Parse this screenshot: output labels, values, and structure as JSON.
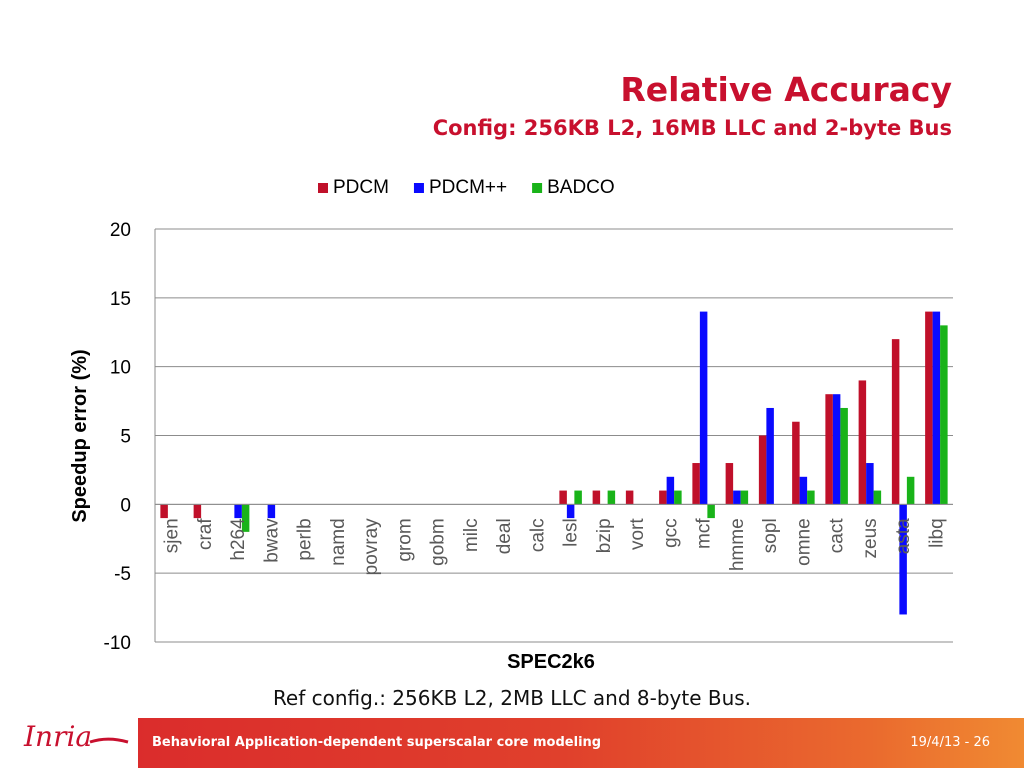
{
  "slide": {
    "title": "Relative Accuracy",
    "subtitle": "Config: 256KB L2, 16MB LLC and 2-byte Bus",
    "caption": "Ref config.: 256KB L2, 2MB LLC and 8-byte Bus.",
    "footer_text": "Behavioral Application-dependent superscalar core modeling",
    "footer_page": "19/4/13 - 26",
    "logo_text": "Inria",
    "colors": {
      "accent": "#c8102e",
      "footer": "#e0402c"
    }
  },
  "chart_data": {
    "type": "bar",
    "title": "",
    "xlabel": "SPEC2k6",
    "ylabel": "Speedup error (%)",
    "ylim": [
      -10,
      20
    ],
    "yticks": [
      20,
      15,
      10,
      5,
      0,
      -5,
      -10
    ],
    "grid": true,
    "legend_position": "top",
    "categories": [
      "sjen",
      "craf",
      "h264",
      "bwav",
      "perlb",
      "namd",
      "povray",
      "grom",
      "gobm",
      "milc",
      "deal",
      "calc",
      "lesl",
      "bzip",
      "vort",
      "gcc",
      "mcf",
      "hmme",
      "sopl",
      "omne",
      "cact",
      "zeus",
      "asta",
      "libq"
    ],
    "series": [
      {
        "name": "PDCM",
        "color": "#c0102a",
        "values": [
          -1,
          -1,
          0,
          0,
          0,
          0,
          0,
          0,
          0,
          0,
          0,
          0,
          1,
          1,
          1,
          1,
          3,
          3,
          5,
          6,
          8,
          9,
          12,
          14
        ]
      },
      {
        "name": "PDCM++",
        "color": "#0a0aff",
        "values": [
          0,
          0,
          -1,
          -1,
          0,
          0,
          0,
          0,
          0,
          0,
          0,
          0,
          -1,
          0,
          0,
          2,
          14,
          1,
          7,
          2,
          8,
          3,
          -8,
          14
        ]
      },
      {
        "name": "BADCO",
        "color": "#19b319",
        "values": [
          0,
          0,
          -2,
          0,
          0,
          0,
          0,
          0,
          0,
          0,
          0,
          0,
          1,
          1,
          0,
          1,
          -1,
          1,
          0,
          1,
          7,
          1,
          2,
          13
        ]
      }
    ]
  }
}
